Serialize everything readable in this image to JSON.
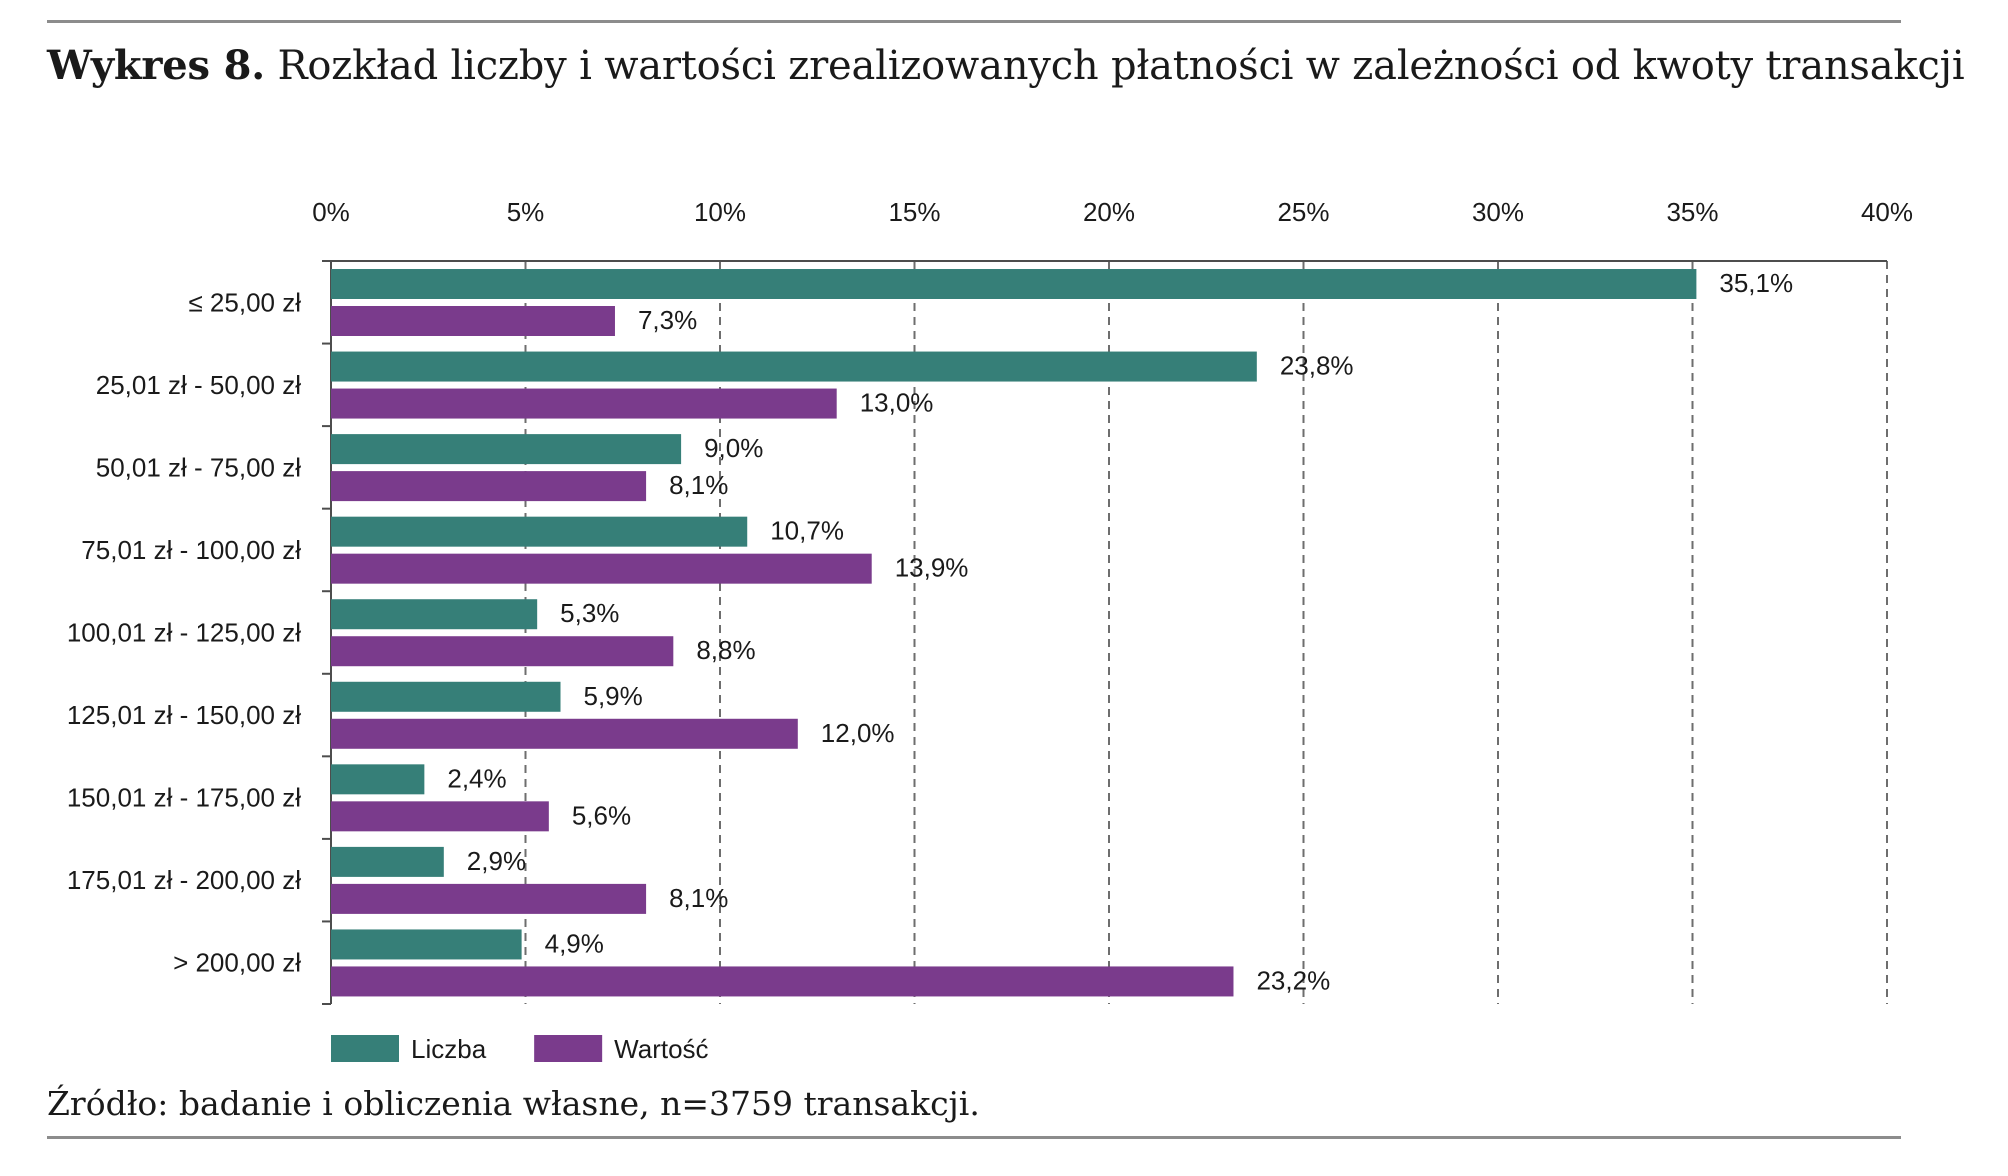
{
  "figure": {
    "label": "Wykres 8.",
    "title": "Rozkład liczby i wartości zrealizowanych płatności w zależności od kwoty transakcji",
    "source": "Źródło: badanie i obliczenia własne, n=3759 transakcji."
  },
  "colors": {
    "liczba": "#367f78",
    "wartosc": "#7a3b8c",
    "grid": "#6e6e6e",
    "axis": "#4d4d4d",
    "rule": "#8c8c8c"
  },
  "chart_data": {
    "type": "bar",
    "orientation": "horizontal",
    "title": "",
    "xlabel": "",
    "ylabel": "",
    "xlim": [
      0,
      40
    ],
    "x_ticks": [
      "0%",
      "5%",
      "10%",
      "15%",
      "20%",
      "25%",
      "30%",
      "35%",
      "40%"
    ],
    "x_axis_position": "top",
    "grid": "vertical dashed",
    "legend_position": "bottom-left",
    "categories": [
      "≤ 25,00 zł",
      "25,01 zł - 50,00 zł",
      "50,01 zł - 75,00 zł",
      "75,01 zł - 100,00 zł",
      "100,01 zł - 125,00 zł",
      "125,01 zł - 150,00 zł",
      "150,01 zł - 175,00 zł",
      "175,01 zł - 200,00 zł",
      "> 200,00 zł"
    ],
    "series": [
      {
        "name": "Liczba",
        "color": "#367f78",
        "values": [
          35.1,
          23.8,
          9.0,
          10.7,
          5.3,
          5.9,
          2.4,
          2.9,
          4.9
        ],
        "labels": [
          "35,1%",
          "23,8%",
          "9,0%",
          "10,7%",
          "5,3%",
          "5,9%",
          "2,4%",
          "2,9%",
          "4,9%"
        ]
      },
      {
        "name": "Wartość",
        "color": "#7a3b8c",
        "values": [
          7.3,
          13.0,
          8.1,
          13.9,
          8.8,
          12.0,
          5.6,
          8.1,
          23.2
        ],
        "labels": [
          "7,3%",
          "13,0%",
          "8,1%",
          "13,9%",
          "8,8%",
          "12,0%",
          "5,6%",
          "8,1%",
          "23,2%"
        ]
      }
    ]
  }
}
